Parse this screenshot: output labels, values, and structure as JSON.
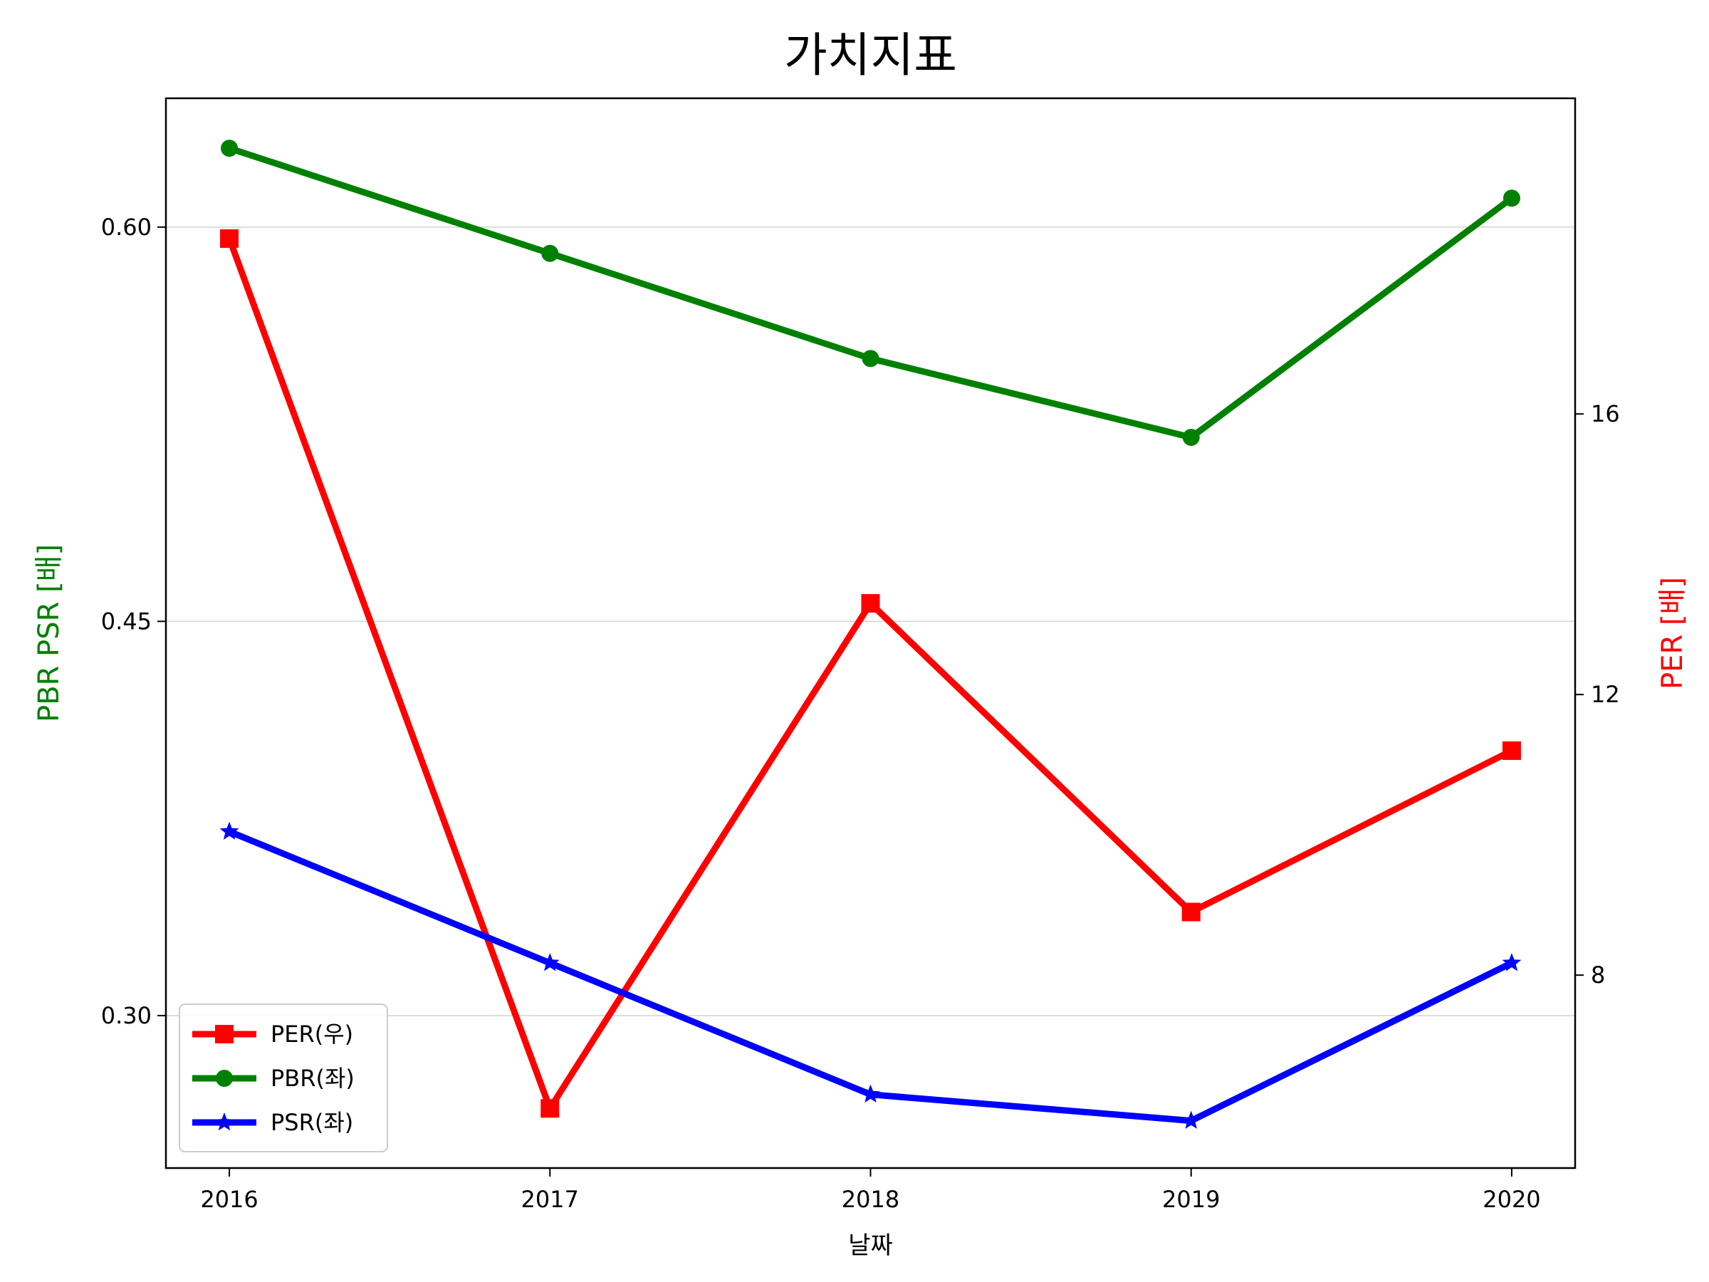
{
  "chart_data": {
    "type": "line",
    "title": "가치지표",
    "xlabel": "날짜",
    "ylabel_left": "PBR PSR [배]",
    "ylabel_right": "PER [배]",
    "x": [
      "2016",
      "2017",
      "2018",
      "2019",
      "2020"
    ],
    "ylim_left": [
      0.242,
      0.649
    ],
    "ylim_right": [
      5.25,
      20.5
    ],
    "yticks_left": [
      0.3,
      0.45,
      0.6
    ],
    "yticks_left_labels": [
      "0.30",
      "0.45",
      "0.60"
    ],
    "yticks_right": [
      8,
      12,
      16
    ],
    "yticks_right_labels": [
      "8",
      "12",
      "16"
    ],
    "grid": "horizontal (left axis)",
    "legend_position": "lower-left",
    "series": [
      {
        "name": "PER(우)",
        "axis": "right",
        "color": "#ff0000",
        "marker": "square",
        "values": [
          18.5,
          6.1,
          13.3,
          8.9,
          11.2
        ]
      },
      {
        "name": "PBR(좌)",
        "axis": "left",
        "color": "#008000",
        "marker": "circle",
        "values": [
          0.63,
          0.59,
          0.55,
          0.52,
          0.611
        ]
      },
      {
        "name": "PSR(좌)",
        "axis": "left",
        "color": "#0000ff",
        "marker": "star",
        "values": [
          0.37,
          0.32,
          0.27,
          0.26,
          0.32
        ]
      }
    ],
    "legend_order": [
      "PER(우)",
      "PBR(좌)",
      "PSR(좌)"
    ]
  }
}
